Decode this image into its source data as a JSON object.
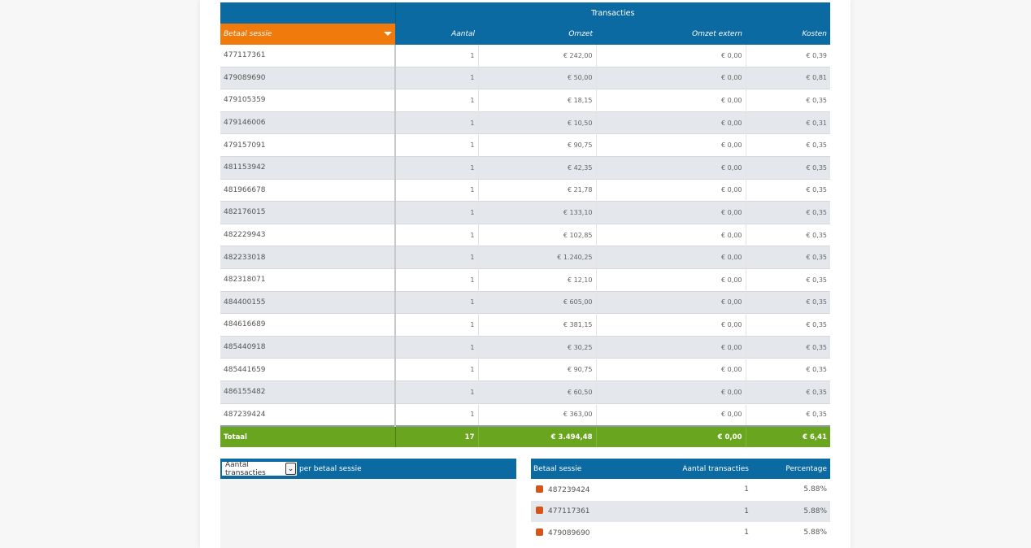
{
  "colors": {
    "header_blue": "#0b6aa2",
    "sort_orange": "#f07a0b",
    "total_green": "#6aa520",
    "swatch": "#d4541a"
  },
  "main_table": {
    "group_header": "Transacties",
    "columns": [
      "Betaal sessie",
      "Aantal",
      "Omzet",
      "Omzet extern",
      "Kosten"
    ],
    "sort_icon": "sort-down-icon",
    "rows": [
      [
        "477117361",
        "1",
        "€ 242,00",
        "€ 0,00",
        "€ 0,39"
      ],
      [
        "479089690",
        "1",
        "€ 50,00",
        "€ 0,00",
        "€ 0,81"
      ],
      [
        "479105359",
        "1",
        "€ 18,15",
        "€ 0,00",
        "€ 0,35"
      ],
      [
        "479146006",
        "1",
        "€ 10,50",
        "€ 0,00",
        "€ 0,31"
      ],
      [
        "479157091",
        "1",
        "€ 90,75",
        "€ 0,00",
        "€ 0,35"
      ],
      [
        "481153942",
        "1",
        "€ 42,35",
        "€ 0,00",
        "€ 0,35"
      ],
      [
        "481966678",
        "1",
        "€ 21,78",
        "€ 0,00",
        "€ 0,35"
      ],
      [
        "482176015",
        "1",
        "€ 133,10",
        "€ 0,00",
        "€ 0,35"
      ],
      [
        "482229943",
        "1",
        "€ 102,85",
        "€ 0,00",
        "€ 0,35"
      ],
      [
        "482233018",
        "1",
        "€ 1.240,25",
        "€ 0,00",
        "€ 0,35"
      ],
      [
        "482318071",
        "1",
        "€ 12,10",
        "€ 0,00",
        "€ 0,35"
      ],
      [
        "484400155",
        "1",
        "€ 605,00",
        "€ 0,00",
        "€ 0,35"
      ],
      [
        "484616689",
        "1",
        "€ 381,15",
        "€ 0,00",
        "€ 0,35"
      ],
      [
        "485440918",
        "1",
        "€ 30,25",
        "€ 0,00",
        "€ 0,35"
      ],
      [
        "485441659",
        "1",
        "€ 90,75",
        "€ 0,00",
        "€ 0,35"
      ],
      [
        "486155482",
        "1",
        "€ 60,50",
        "€ 0,00",
        "€ 0,35"
      ],
      [
        "487239424",
        "1",
        "€ 363,00",
        "€ 0,00",
        "€ 0,35"
      ]
    ],
    "total": [
      "Totaal",
      "17",
      "€ 3.494,48",
      "€ 0,00",
      "€ 6,41"
    ]
  },
  "chart_panel": {
    "select_value": "Aantal transacties",
    "suffix": "per betaal sessie",
    "dropdown_icon": "chevron-down-icon"
  },
  "legend_table": {
    "columns": [
      "Betaal sessie",
      "Aantal transacties",
      "Percentage"
    ],
    "rows": [
      [
        "487239424",
        "1",
        "5.88%"
      ],
      [
        "477117361",
        "1",
        "5.88%"
      ],
      [
        "479089690",
        "1",
        "5.88%"
      ]
    ]
  }
}
